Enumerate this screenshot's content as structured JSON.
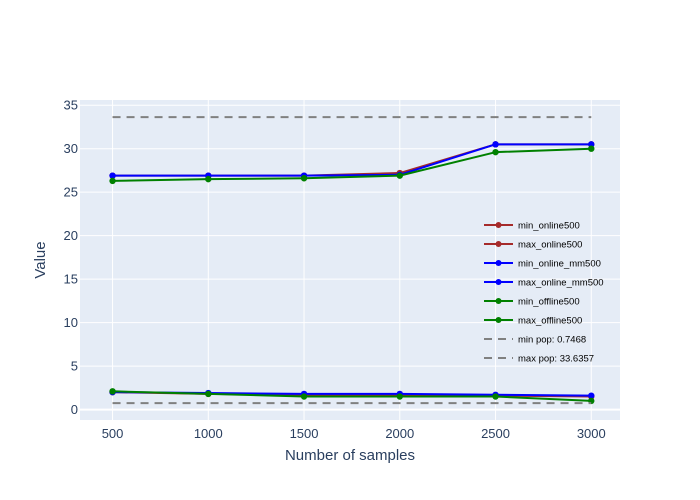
{
  "chart_data": {
    "type": "line",
    "xlabel": "Number of samples",
    "ylabel": "Value",
    "x": [
      500,
      1000,
      1500,
      2000,
      2500,
      3000
    ],
    "xticks": [
      500,
      1000,
      1500,
      2000,
      2500,
      3000
    ],
    "xlim": [
      330,
      3150
    ],
    "yticks": [
      0,
      5,
      10,
      15,
      20,
      25,
      30,
      35
    ],
    "ylim": [
      -1.2,
      35.6
    ],
    "grid": true,
    "legend_position": "right",
    "plot_background": "#E5ECF6",
    "series": [
      {
        "name": "min_online500",
        "color": "#a52a2a",
        "style": "solid",
        "markers": true,
        "values": [
          2.0,
          1.8,
          1.7,
          1.7,
          1.6,
          1.5
        ]
      },
      {
        "name": "max_online500",
        "color": "#a52a2a",
        "style": "solid",
        "markers": true,
        "values": [
          26.9,
          26.9,
          26.9,
          27.2,
          30.5,
          30.5
        ]
      },
      {
        "name": "min_online_mm500",
        "color": "#0000ff",
        "style": "solid",
        "markers": true,
        "values": [
          2.0,
          1.9,
          1.8,
          1.8,
          1.7,
          1.6
        ]
      },
      {
        "name": "max_online_mm500",
        "color": "#0000ff",
        "style": "solid",
        "markers": true,
        "values": [
          26.9,
          26.9,
          26.9,
          27.0,
          30.5,
          30.5
        ]
      },
      {
        "name": "min_offline500",
        "color": "#008000",
        "style": "solid",
        "markers": true,
        "values": [
          2.1,
          1.8,
          1.5,
          1.5,
          1.5,
          1.0
        ]
      },
      {
        "name": "max_offline500",
        "color": "#008000",
        "style": "solid",
        "markers": true,
        "values": [
          26.3,
          26.5,
          26.6,
          26.9,
          29.6,
          30.0
        ]
      },
      {
        "name": "min pop: 0.7468",
        "color": "#808080",
        "style": "dash",
        "markers": false,
        "values": [
          0.7468,
          0.7468,
          0.7468,
          0.7468,
          0.7468,
          0.7468
        ]
      },
      {
        "name": "max pop: 33.6357",
        "color": "#808080",
        "style": "dash",
        "markers": false,
        "values": [
          33.6357,
          33.6357,
          33.6357,
          33.6357,
          33.6357,
          33.6357
        ]
      }
    ]
  }
}
